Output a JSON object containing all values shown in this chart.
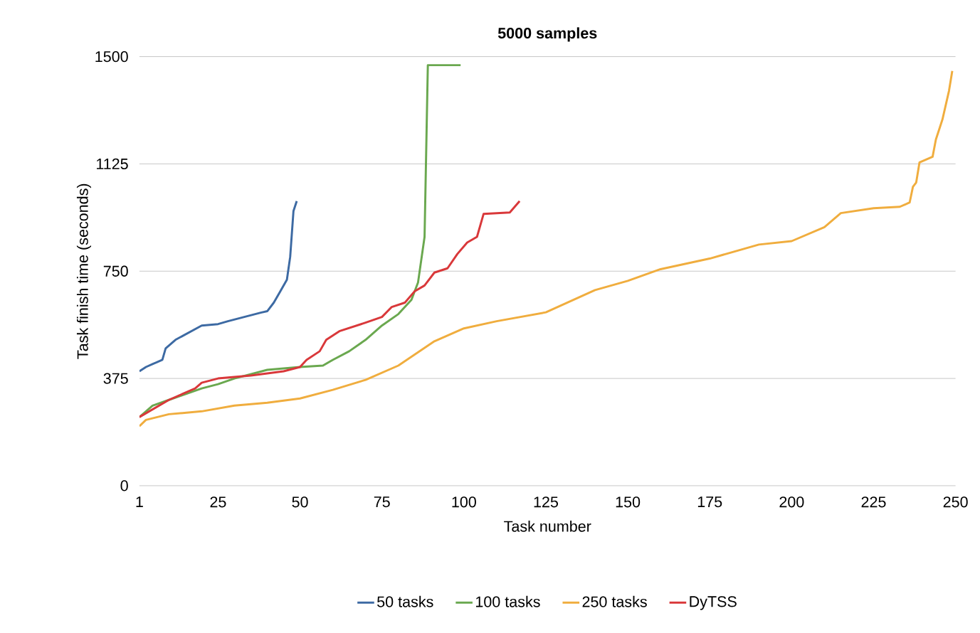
{
  "chart_data": {
    "type": "line",
    "title": "5000 samples",
    "xlabel": "Task number",
    "ylabel": "Task finish time (seconds)",
    "xlim": [
      1,
      250
    ],
    "xticks": [
      1,
      25,
      50,
      75,
      100,
      125,
      150,
      175,
      200,
      225,
      250
    ],
    "ylim": [
      0,
      1500
    ],
    "yticks": [
      0,
      375,
      750,
      1125,
      1500
    ],
    "grid": "y",
    "legend": "bottom",
    "marker": "none",
    "line_style": "solid",
    "series": [
      {
        "name": "50 tasks",
        "color": "#3d6aa3",
        "x": [
          1,
          3,
          5,
          8,
          9,
          12,
          16,
          20,
          25,
          28,
          33,
          38,
          40,
          42,
          44,
          46,
          47,
          48,
          49
        ],
        "values": [
          400,
          415,
          425,
          440,
          480,
          510,
          535,
          560,
          565,
          575,
          590,
          605,
          610,
          640,
          680,
          720,
          800,
          960,
          995
        ]
      },
      {
        "name": "100 tasks",
        "color": "#6aa84f",
        "x": [
          1,
          5,
          10,
          20,
          25,
          30,
          40,
          50,
          57,
          60,
          65,
          70,
          75,
          80,
          84,
          86,
          88,
          89,
          99
        ],
        "values": [
          240,
          280,
          300,
          340,
          355,
          375,
          405,
          415,
          420,
          440,
          470,
          510,
          560,
          600,
          650,
          710,
          870,
          1470,
          1470
        ]
      },
      {
        "name": "250 tasks",
        "color": "#f0ad3e",
        "x": [
          1,
          3,
          10,
          20,
          30,
          40,
          50,
          60,
          70,
          80,
          91,
          100,
          110,
          125,
          140,
          150,
          160,
          175,
          190,
          200,
          210,
          215,
          225,
          233,
          236,
          237,
          238,
          239,
          243,
          244,
          246,
          248,
          249
        ],
        "values": [
          208,
          230,
          250,
          260,
          280,
          290,
          305,
          335,
          370,
          420,
          505,
          550,
          575,
          606,
          684,
          716,
          757,
          794,
          843,
          855,
          904,
          953,
          970,
          975,
          990,
          1045,
          1060,
          1130,
          1150,
          1210,
          1280,
          1380,
          1450
        ]
      },
      {
        "name": "DyTSS",
        "color": "#d9383a",
        "x": [
          1,
          10,
          18,
          20,
          25,
          35,
          45,
          50,
          52,
          56,
          58,
          62,
          70,
          75,
          78,
          82,
          85,
          88,
          91,
          95,
          98,
          101,
          104,
          106,
          114,
          117
        ],
        "values": [
          240,
          300,
          340,
          360,
          375,
          385,
          400,
          415,
          440,
          470,
          510,
          540,
          570,
          590,
          625,
          640,
          680,
          700,
          745,
          760,
          810,
          850,
          870,
          950,
          955,
          995
        ]
      }
    ]
  }
}
